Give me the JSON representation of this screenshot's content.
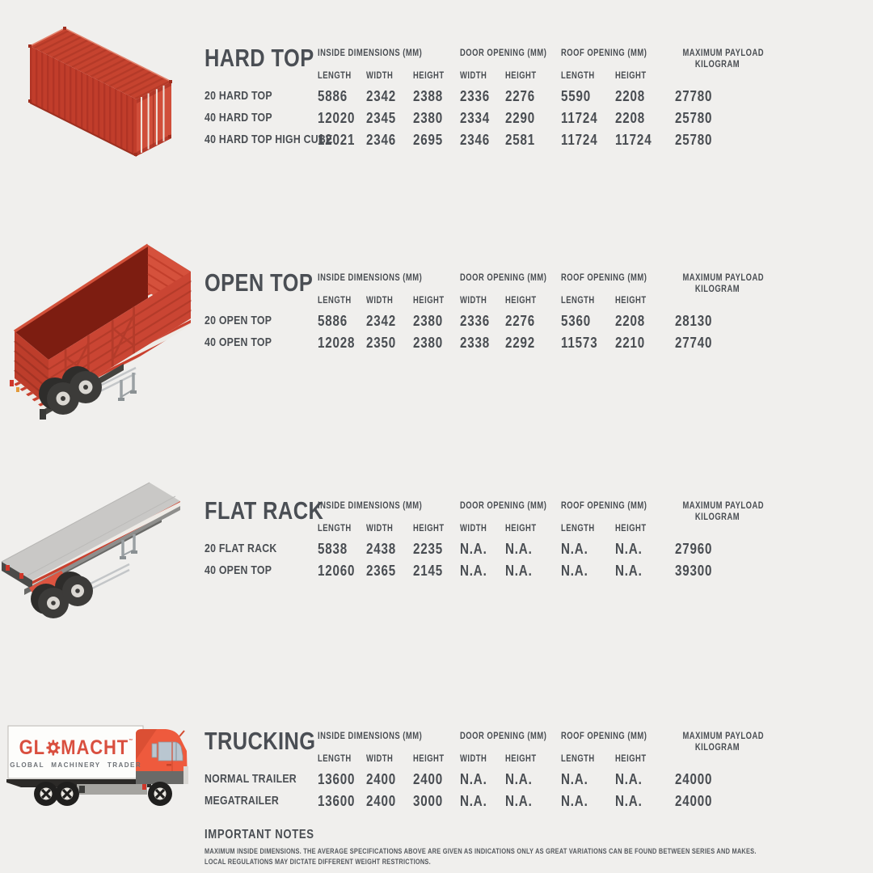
{
  "colors": {
    "background": "#f0efed",
    "text": "#494d52",
    "container_red": "#c74534",
    "cab_orange": "#ee5a3d",
    "logo_red": "#d94f3f"
  },
  "table_headers": {
    "inside_dimensions": "INSIDE DIMENSIONS (MM)",
    "door_opening": "DOOR OPENING (MM)",
    "roof_opening": "ROOF OPENING (MM)",
    "max_payload_line1": "MAXIMUM PAYLOAD",
    "max_payload_line2": "KILOGRAM",
    "sub": [
      "LENGTH",
      "WIDTH",
      "HEIGHT",
      "WIDTH",
      "HEIGHT",
      "LENGTH",
      "HEIGHT"
    ]
  },
  "sections": [
    {
      "title": "HARD TOP",
      "illustration": "hard-top-container",
      "rows": [
        {
          "label": "20 HARD TOP",
          "values": [
            "5886",
            "2342",
            "2388",
            "2336",
            "2276",
            "5590",
            "2208",
            "27780"
          ]
        },
        {
          "label": "40 HARD TOP",
          "values": [
            "12020",
            "2345",
            "2380",
            "2334",
            "2290",
            "11724",
            "2208",
            "25780"
          ]
        },
        {
          "label": "40 HARD TOP HIGH CUBE",
          "values": [
            "12021",
            "2346",
            "2695",
            "2346",
            "2581",
            "11724",
            "11724",
            "25780"
          ]
        }
      ]
    },
    {
      "title": "OPEN TOP",
      "illustration": "open-top-trailer",
      "rows": [
        {
          "label": "20 OPEN TOP",
          "values": [
            "5886",
            "2342",
            "2380",
            "2336",
            "2276",
            "5360",
            "2208",
            "28130"
          ]
        },
        {
          "label": "40 OPEN TOP",
          "values": [
            "12028",
            "2350",
            "2380",
            "2338",
            "2292",
            "11573",
            "2210",
            "27740"
          ]
        }
      ]
    },
    {
      "title": "FLAT RACK",
      "illustration": "flat-rack-trailer",
      "rows": [
        {
          "label": "20 FLAT RACK",
          "values": [
            "5838",
            "2438",
            "2235",
            "N.A.",
            "N.A.",
            "N.A.",
            "N.A.",
            "27960"
          ]
        },
        {
          "label": "40 OPEN TOP",
          "values": [
            "12060",
            "2365",
            "2145",
            "N.A.",
            "N.A.",
            "N.A.",
            "N.A.",
            "39300"
          ]
        }
      ]
    },
    {
      "title": "TRUCKING",
      "illustration": "glomacht-truck",
      "rows": [
        {
          "label": "NORMAL TRAILER",
          "values": [
            "13600",
            "2400",
            "2400",
            "N.A.",
            "N.A.",
            "N.A.",
            "N.A.",
            "24000"
          ]
        },
        {
          "label": "MEGATRAILER",
          "values": [
            "13600",
            "2400",
            "3000",
            "N.A.",
            "N.A.",
            "N.A.",
            "N.A.",
            "24000"
          ]
        }
      ]
    }
  ],
  "logo": {
    "prefix": "GL",
    "suffix": "MACHT",
    "trademark": "™",
    "tagline": "GLOBAL MACHINERY TRADER"
  },
  "notes": {
    "title": "IMPORTANT NOTES",
    "lines": [
      "MAXIMUM INSIDE DIMENSIONS. THE AVERAGE SPECIFICATIONS ABOVE ARE GIVEN AS INDICATIONS ONLY AS GREAT VARIATIONS CAN BE FOUND BETWEEN SERIES AND MAKES.",
      "LOCAL REGULATIONS MAY DICTATE DIFFERENT WEIGHT RESTRICTIONS."
    ]
  }
}
